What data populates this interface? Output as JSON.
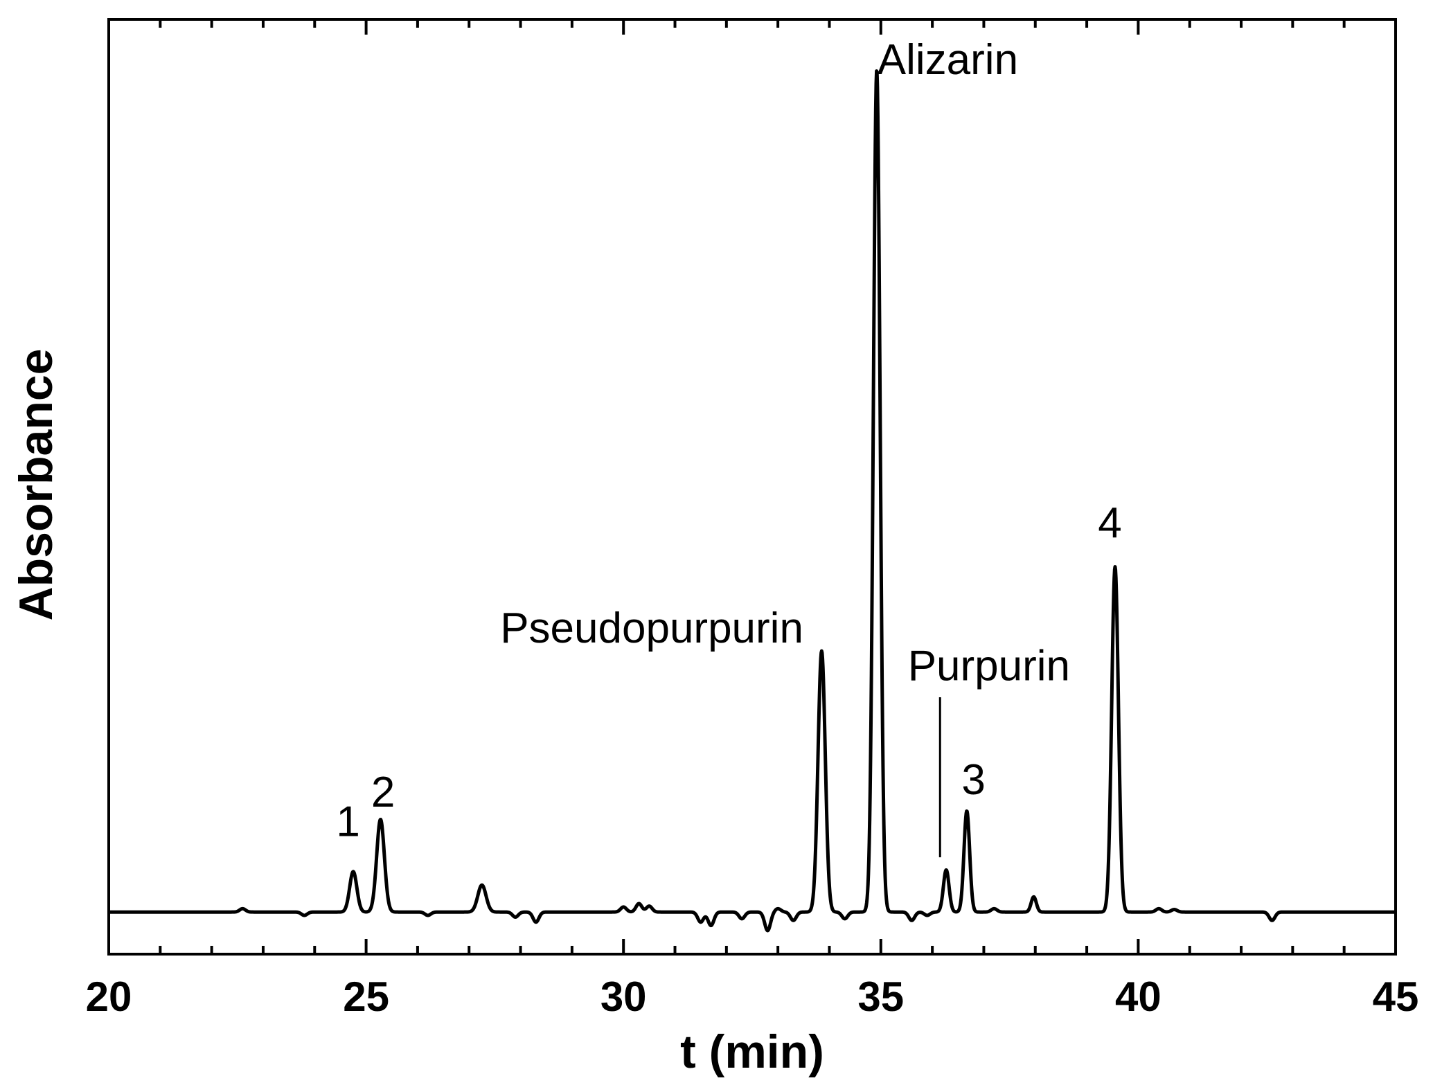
{
  "chart_data": {
    "type": "line",
    "xlabel": "t (min)",
    "ylabel": "Absorbance",
    "xlim": [
      20,
      45
    ],
    "ylim": [
      -0.05,
      1.06
    ],
    "x_ticks": [
      "20",
      "25",
      "30",
      "35",
      "40",
      "45"
    ],
    "x_minor_step": 1,
    "y_ticks_shown": false,
    "grid": false,
    "baseline": 0.0,
    "peaks": [
      {
        "x": 24.75,
        "height": 0.048,
        "width": 0.07
      },
      {
        "x": 25.28,
        "height": 0.11,
        "width": 0.075
      },
      {
        "x": 27.25,
        "height": 0.032,
        "width": 0.08
      },
      {
        "x": 33.85,
        "height": 0.31,
        "width": 0.07
      },
      {
        "x": 34.92,
        "height": 1.0,
        "width": 0.065
      },
      {
        "x": 36.27,
        "height": 0.05,
        "width": 0.055
      },
      {
        "x": 36.67,
        "height": 0.12,
        "width": 0.055
      },
      {
        "x": 37.97,
        "height": 0.018,
        "width": 0.05
      },
      {
        "x": 39.55,
        "height": 0.41,
        "width": 0.065
      }
    ],
    "noise_points": [
      {
        "x": 21.0,
        "y": 0.0
      },
      {
        "x": 22.6,
        "y": 0.004
      },
      {
        "x": 23.8,
        "y": -0.004
      },
      {
        "x": 26.2,
        "y": -0.004
      },
      {
        "x": 27.9,
        "y": -0.006
      },
      {
        "x": 28.3,
        "y": -0.012
      },
      {
        "x": 30.0,
        "y": 0.006
      },
      {
        "x": 30.3,
        "y": 0.01
      },
      {
        "x": 30.5,
        "y": 0.007
      },
      {
        "x": 31.5,
        "y": -0.012
      },
      {
        "x": 31.7,
        "y": -0.016
      },
      {
        "x": 32.3,
        "y": -0.008
      },
      {
        "x": 32.8,
        "y": -0.022
      },
      {
        "x": 33.0,
        "y": 0.004
      },
      {
        "x": 33.3,
        "y": -0.01
      },
      {
        "x": 34.3,
        "y": -0.008
      },
      {
        "x": 35.6,
        "y": -0.01
      },
      {
        "x": 35.9,
        "y": -0.004
      },
      {
        "x": 37.2,
        "y": 0.004
      },
      {
        "x": 40.4,
        "y": 0.004
      },
      {
        "x": 40.7,
        "y": 0.003
      },
      {
        "x": 42.6,
        "y": -0.01
      }
    ],
    "annotations": [
      {
        "text": "1",
        "x": 24.65,
        "y": 0.09
      },
      {
        "text": "2",
        "x": 25.33,
        "y": 0.125
      },
      {
        "text": "Pseudopurpurin",
        "x": 30.55,
        "y": 0.32
      },
      {
        "text": "Alizarin",
        "x": 36.3,
        "y": 0.995
      },
      {
        "text": "Purpurin",
        "x": 37.1,
        "y": 0.275
      },
      {
        "text": "3",
        "x": 36.8,
        "y": 0.14
      },
      {
        "text": "4",
        "x": 39.45,
        "y": 0.445
      }
    ],
    "purpurin_marker": {
      "x": 36.15,
      "y_from": 0.065,
      "y_to": 0.255
    }
  }
}
